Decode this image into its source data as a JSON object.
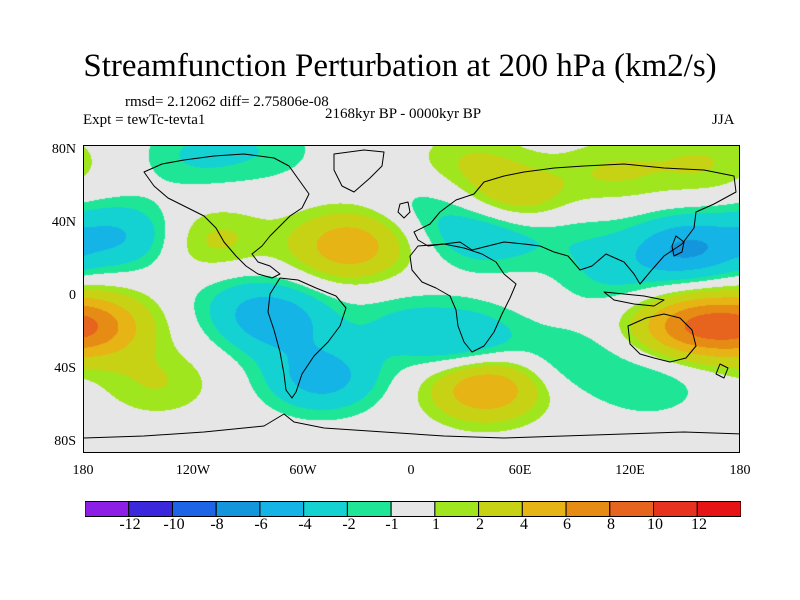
{
  "title": "Streamfunction Perturbation at 200 hPa (km2/s)",
  "stats": "rmsd= 2.12062 diff= 2.75806e-08",
  "experiment": "Expt = tewTc-tevta1",
  "period": "2168kyr BP - 0000kyr BP",
  "season": "JJA",
  "y_ticks": [
    "80N",
    "40N",
    "0",
    "40S",
    "80S"
  ],
  "x_ticks": [
    "180",
    "120W",
    "60W",
    "0",
    "60E",
    "120E",
    "180"
  ],
  "colorbar": {
    "labels": [
      "-12",
      "-10",
      "-8",
      "-6",
      "-4",
      "-2",
      "-1",
      "1",
      "2",
      "4",
      "6",
      "8",
      "10",
      "12"
    ],
    "colors": [
      "#8c1ee6",
      "#3c28dc",
      "#1e64e6",
      "#1496dc",
      "#14b4e6",
      "#14d2d2",
      "#1ee696",
      "#e6e6e6",
      "#a0e61e",
      "#c8d214",
      "#e6b414",
      "#e68c14",
      "#e6641e",
      "#e6321e",
      "#e61414"
    ]
  },
  "chart_data": {
    "type": "heatmap",
    "title": "Streamfunction Perturbation at 200 hPa (km2/s)",
    "units": "km2/s",
    "x_range": [
      -180,
      180
    ],
    "y_range": [
      -90,
      90
    ],
    "levels": [
      -12,
      -10,
      -8,
      -6,
      -4,
      -2,
      -1,
      1,
      2,
      4,
      6,
      8,
      10,
      12
    ],
    "anomalies": [
      {
        "lon": -175,
        "lat": -15,
        "value": 6.5
      },
      {
        "lon": -140,
        "lat": -48,
        "value": 2
      },
      {
        "lon": -160,
        "lat": 38,
        "value": -4
      },
      {
        "lon": -110,
        "lat": 35,
        "value": 2.5
      },
      {
        "lon": -120,
        "lat": 85,
        "value": -2
      },
      {
        "lon": -80,
        "lat": 88,
        "value": -1.5
      },
      {
        "lon": -95,
        "lat": 2,
        "value": -1.5
      },
      {
        "lon": -75,
        "lat": -12,
        "value": -5
      },
      {
        "lon": -35,
        "lat": 32,
        "value": 5.5
      },
      {
        "lon": -50,
        "lat": -45,
        "value": -5
      },
      {
        "lon": -5,
        "lat": -15,
        "value": -2
      },
      {
        "lon": 30,
        "lat": -25,
        "value": -4
      },
      {
        "lon": 40,
        "lat": -50,
        "value": 6.5
      },
      {
        "lon": 30,
        "lat": 80,
        "value": 2
      },
      {
        "lon": 10,
        "lat": 58,
        "value": -1.5
      },
      {
        "lon": 55,
        "lat": 58,
        "value": 4
      },
      {
        "lon": 40,
        "lat": 40,
        "value": -4
      },
      {
        "lon": 110,
        "lat": 75,
        "value": 2
      },
      {
        "lon": 150,
        "lat": 30,
        "value": -6
      },
      {
        "lon": 110,
        "lat": 15,
        "value": -2
      },
      {
        "lon": 85,
        "lat": 40,
        "value": -1.5
      },
      {
        "lon": 150,
        "lat": -15,
        "value": 6.5
      },
      {
        "lon": 85,
        "lat": -35,
        "value": -2
      },
      {
        "lon": 130,
        "lat": -48,
        "value": -2
      },
      {
        "lon": 160,
        "lat": 80,
        "value": 2
      }
    ]
  }
}
